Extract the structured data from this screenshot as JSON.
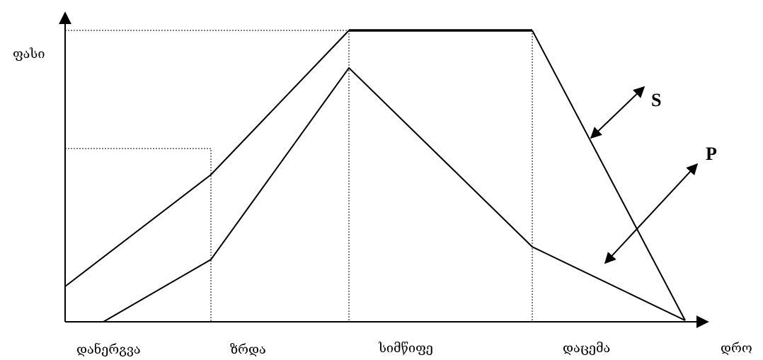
{
  "axes": {
    "y_label": "ფასი",
    "x_label": "დრო"
  },
  "stages": [
    {
      "id": "introduction",
      "label": "დანერგვა"
    },
    {
      "id": "growth",
      "label": "ზრდა"
    },
    {
      "id": "maturity",
      "label": "სიმწიფე"
    },
    {
      "id": "decline",
      "label": "დაცემა"
    }
  ],
  "curves": [
    {
      "id": "S",
      "label": "S"
    },
    {
      "id": "P",
      "label": "P"
    }
  ]
}
